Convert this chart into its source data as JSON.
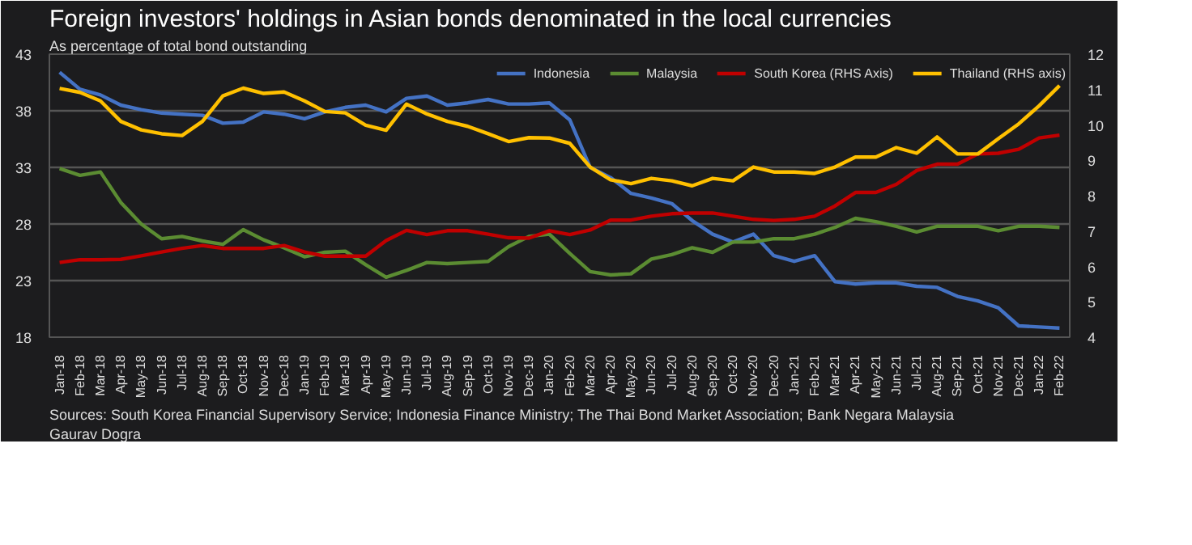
{
  "chart_data": {
    "type": "line",
    "title": "Foreign investors' holdings in Asian bonds denominated in the local currencies",
    "subtitle": "As percentage of total bond outstanding",
    "categories": [
      "Jan-18",
      "Feb-18",
      "Mar-18",
      "Apr-18",
      "May-18",
      "Jun-18",
      "Jul-18",
      "Aug-18",
      "Sep-18",
      "Oct-18",
      "Nov-18",
      "Dec-18",
      "Jan-19",
      "Feb-19",
      "Mar-19",
      "Apr-19",
      "May-19",
      "Jun-19",
      "Jul-19",
      "Aug-19",
      "Sep-19",
      "Oct-19",
      "Nov-19",
      "Dec-19",
      "Jan-20",
      "Feb-20",
      "Mar-20",
      "Apr-20",
      "May-20",
      "Jun-20",
      "Jul-20",
      "Aug-20",
      "Sep-20",
      "Oct-20",
      "Nov-20",
      "Dec-20",
      "Jan-21",
      "Feb-21",
      "Mar-21",
      "Apr-21",
      "May-21",
      "Jun-21",
      "Jul-21",
      "Aug-21",
      "Sep-21",
      "Oct-21",
      "Nov-21",
      "Dec-21",
      "Jan-22",
      "Feb-22"
    ],
    "series": [
      {
        "name": "Indonesia",
        "color": "#4472c4",
        "values": [
          41.4,
          39.9,
          39.4,
          38.5,
          38.1,
          37.8,
          37.7,
          37.6,
          36.9,
          37.0,
          37.9,
          37.7,
          37.3,
          37.9,
          38.3,
          38.5,
          37.9,
          39.1,
          39.3,
          38.5,
          38.7,
          39.0,
          38.6,
          38.6,
          38.7,
          37.2,
          33.0,
          32.1,
          30.7,
          30.3,
          29.8,
          28.3,
          27.1,
          26.4,
          27.1,
          25.2,
          24.7,
          25.2,
          22.9,
          22.7,
          22.8,
          22.8,
          22.5,
          22.4,
          21.6,
          21.2,
          20.6,
          19.0,
          18.9,
          18.8
        ]
      },
      {
        "name": "Malaysia",
        "color": "#5b8c32",
        "values": [
          32.9,
          32.3,
          32.6,
          29.9,
          28.0,
          26.7,
          26.9,
          26.5,
          26.2,
          27.5,
          26.6,
          25.9,
          25.1,
          25.5,
          25.6,
          24.4,
          23.3,
          23.9,
          24.6,
          24.5,
          24.6,
          24.7,
          26.0,
          26.9,
          27.1,
          25.4,
          23.8,
          23.5,
          23.6,
          24.9,
          25.3,
          25.9,
          25.5,
          26.4,
          26.4,
          26.7,
          26.7,
          27.1,
          27.7,
          28.5,
          28.2,
          27.8,
          27.3,
          27.8,
          27.8,
          27.8,
          27.4,
          27.8,
          27.8,
          27.7
        ]
      },
      {
        "name": "South Korea (RHS Axis)",
        "color": "#c00000",
        "axis": "y2",
        "values": [
          6.11,
          6.19,
          6.19,
          6.2,
          6.3,
          6.41,
          6.51,
          6.59,
          6.51,
          6.51,
          6.51,
          6.59,
          6.41,
          6.29,
          6.29,
          6.29,
          6.73,
          7.02,
          6.9,
          7.01,
          7.01,
          6.91,
          6.81,
          6.8,
          7.01,
          6.9,
          7.03,
          7.31,
          7.31,
          7.42,
          7.49,
          7.51,
          7.51,
          7.42,
          7.33,
          7.3,
          7.33,
          7.42,
          7.71,
          8.09,
          8.09,
          8.32,
          8.71,
          8.89,
          8.89,
          9.18,
          9.2,
          9.31,
          9.63,
          9.71
        ]
      },
      {
        "name": "Thailand (RHS axis)",
        "color": "#ffc000",
        "axis": "y2",
        "values": [
          11.03,
          10.92,
          10.68,
          10.1,
          9.86,
          9.75,
          9.7,
          10.1,
          10.82,
          11.04,
          10.89,
          10.93,
          10.68,
          10.38,
          10.34,
          9.99,
          9.85,
          10.59,
          10.31,
          10.1,
          9.96,
          9.75,
          9.53,
          9.64,
          9.63,
          9.48,
          8.81,
          8.45,
          8.34,
          8.49,
          8.42,
          8.28,
          8.49,
          8.42,
          8.81,
          8.67,
          8.67,
          8.63,
          8.81,
          9.09,
          9.09,
          9.36,
          9.2,
          9.66,
          9.18,
          9.18,
          9.61,
          10.03,
          10.54,
          11.11
        ]
      }
    ],
    "ylim": [
      18,
      43
    ],
    "yticks": [
      18,
      23,
      28,
      33,
      38,
      43
    ],
    "y2lim": [
      4,
      12
    ],
    "y2ticks": [
      4,
      5,
      6,
      7,
      8,
      9,
      10,
      11,
      12
    ],
    "grid": "y",
    "legend": "top right",
    "annotations": [
      "Sources: South Korea Financial Supervisory Service; Indonesia Finance Ministry; The Thai Bond Market Association; Bank Negara Malaysia",
      "Gaurav Dogra"
    ]
  }
}
